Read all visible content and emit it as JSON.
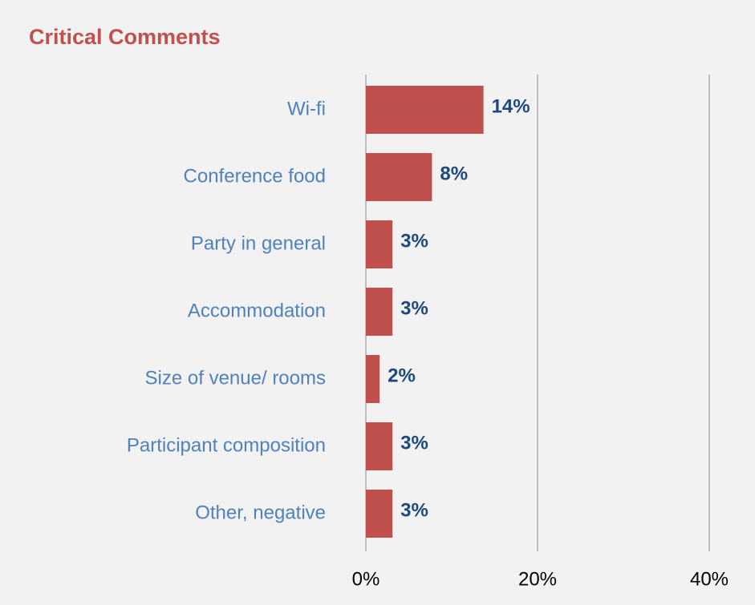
{
  "chart_data": {
    "type": "bar",
    "orientation": "horizontal",
    "title": "Critical Comments",
    "categories": [
      "Wi-fi",
      "Conference food",
      "Party in general",
      "Accommodation",
      "Size of venue/ rooms",
      "Participant composition",
      "Other, negative"
    ],
    "values": [
      13.7,
      7.7,
      3.1,
      3.1,
      1.6,
      3.1,
      3.1
    ],
    "value_labels": [
      "14%",
      "8%",
      "3%",
      "3%",
      "2%",
      "3%",
      "3%"
    ],
    "color": "#c0504d",
    "xlim": [
      0,
      40
    ],
    "xticks": [
      {
        "value": 0,
        "label": "0%"
      },
      {
        "value": 20,
        "label": "20%"
      },
      {
        "value": 40,
        "label": "40%"
      }
    ],
    "grid": true
  }
}
